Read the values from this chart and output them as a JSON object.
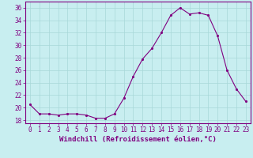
{
  "x": [
    0,
    1,
    2,
    3,
    4,
    5,
    6,
    7,
    8,
    9,
    10,
    11,
    12,
    13,
    14,
    15,
    16,
    17,
    18,
    19,
    20,
    21,
    22,
    23
  ],
  "y": [
    20.5,
    19.0,
    19.0,
    18.8,
    19.0,
    19.0,
    18.8,
    18.3,
    18.3,
    19.0,
    21.5,
    25.0,
    27.8,
    29.5,
    32.0,
    34.8,
    36.0,
    35.0,
    35.2,
    34.8,
    31.5,
    26.0,
    23.0,
    21.0
  ],
  "line_color": "#800080",
  "marker_color": "#800080",
  "bg_color": "#C8EEF0",
  "grid_color": "#A8D8D8",
  "axis_color": "#800080",
  "xlabel": "Windchill (Refroidissement éolien,°C)",
  "ylabel": "",
  "yticks": [
    18,
    20,
    22,
    24,
    26,
    28,
    30,
    32,
    34,
    36
  ],
  "xtick_labels": [
    "0",
    "1",
    "2",
    "3",
    "4",
    "5",
    "6",
    "7",
    "8",
    "9",
    "10",
    "11",
    "12",
    "13",
    "14",
    "15",
    "16",
    "17",
    "18",
    "19",
    "20",
    "21",
    "22",
    "23"
  ],
  "ylim": [
    17.5,
    37.0
  ],
  "xlim": [
    -0.5,
    23.5
  ],
  "xlabel_fontsize": 6.5,
  "tick_fontsize": 5.5
}
